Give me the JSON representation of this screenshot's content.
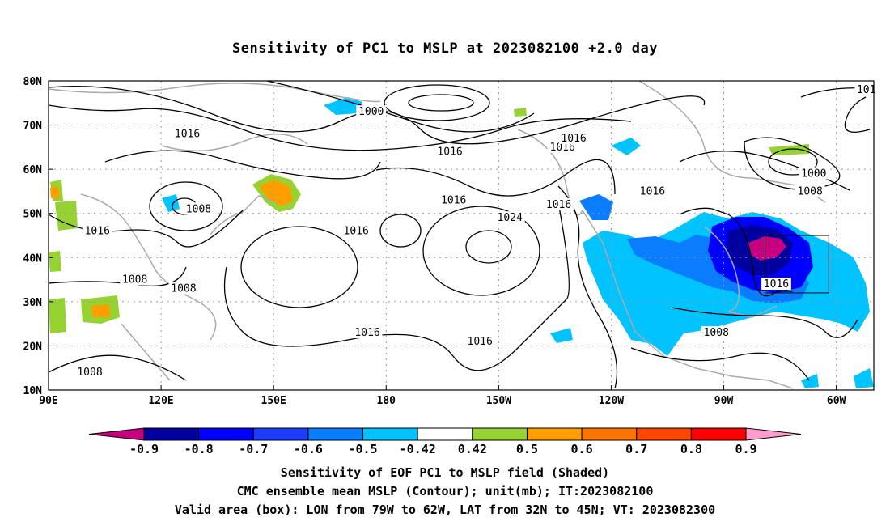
{
  "title": "Sensitivity of PC1 to MSLP at 2023082100 +2.0 day",
  "map": {
    "lat_labels": [
      "80N",
      "70N",
      "60N",
      "50N",
      "40N",
      "30N",
      "20N",
      "10N"
    ],
    "lon_labels": [
      "90E",
      "120E",
      "150E",
      "180",
      "150W",
      "120W",
      "90W",
      "60W"
    ],
    "lon_range": [
      90,
      310
    ],
    "lat_range": [
      10,
      80
    ],
    "contour_labels": [
      {
        "text": "1000",
        "lon": 176,
        "lat": 73
      },
      {
        "text": "1016",
        "lon": 127,
        "lat": 68
      },
      {
        "text": "1016",
        "lon": 197,
        "lat": 64
      },
      {
        "text": "1016",
        "lon": 227,
        "lat": 65
      },
      {
        "text": "1016",
        "lon": 230,
        "lat": 67
      },
      {
        "text": "1016",
        "lon": 198,
        "lat": 53
      },
      {
        "text": "1016",
        "lon": 226,
        "lat": 52
      },
      {
        "text": "1016",
        "lon": 251,
        "lat": 55
      },
      {
        "text": "1008",
        "lon": 130,
        "lat": 51
      },
      {
        "text": "1016",
        "lon": 103,
        "lat": 46
      },
      {
        "text": "1016",
        "lon": 172,
        "lat": 46
      },
      {
        "text": "1024",
        "lon": 213,
        "lat": 49
      },
      {
        "text": "1000",
        "lon": 294,
        "lat": 59
      },
      {
        "text": "1008",
        "lon": 293,
        "lat": 55
      },
      {
        "text": "101",
        "lon": 308,
        "lat": 78
      },
      {
        "text": "1008",
        "lon": 113,
        "lat": 35
      },
      {
        "text": "1008",
        "lon": 126,
        "lat": 33
      },
      {
        "text": "1016",
        "lon": 284,
        "lat": 34
      },
      {
        "text": "1016",
        "lon": 175,
        "lat": 23
      },
      {
        "text": "1016",
        "lon": 205,
        "lat": 21
      },
      {
        "text": "1008",
        "lon": 268,
        "lat": 23
      },
      {
        "text": "1008",
        "lon": 101,
        "lat": 14
      }
    ],
    "valid_box": {
      "lon_min": 281,
      "lon_max": 298,
      "lat_min": 32,
      "lat_max": 45
    }
  },
  "colorbar": {
    "colors": [
      "#c7007f",
      "#0000a0",
      "#0000ff",
      "#1e3cff",
      "#0a7dff",
      "#00c3ff",
      "#ffffff",
      "#96d232",
      "#ff9e00",
      "#ff7300",
      "#ff4500",
      "#ff0000",
      "#ff9ecd"
    ],
    "labels": [
      "-0.9",
      "-0.8",
      "-0.7",
      "-0.6",
      "-0.5",
      "-0.42",
      "0.42",
      "0.5",
      "0.6",
      "0.7",
      "0.8",
      "0.9"
    ]
  },
  "captions": {
    "line1": "Sensitivity of EOF PC1 to MSLP field (Shaded)",
    "line2": "CMC ensemble mean MSLP (Contour); unit(mb); IT:2023082100",
    "line3": "Valid area (box): LON from 79W to 62W, LAT from 32N to 45N; VT: 2023082300"
  }
}
